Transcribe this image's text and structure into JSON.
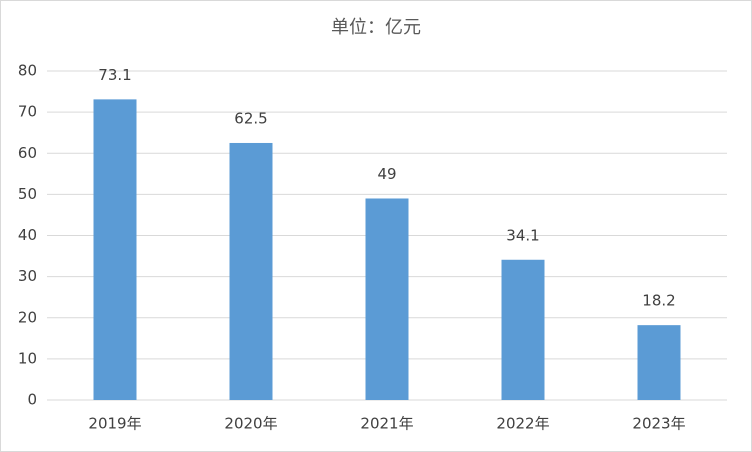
{
  "chart_data": {
    "type": "bar",
    "title": "单位：亿元",
    "categories": [
      "2019年",
      "2020年",
      "2021年",
      "2022年",
      "2023年"
    ],
    "values": [
      73.1,
      62.5,
      49,
      34.1,
      18.2
    ],
    "color": "#5b9bd5",
    "ylim": [
      0,
      80
    ],
    "yticks": [
      0,
      10,
      20,
      30,
      40,
      50,
      60,
      70,
      80
    ],
    "grid": true
  }
}
